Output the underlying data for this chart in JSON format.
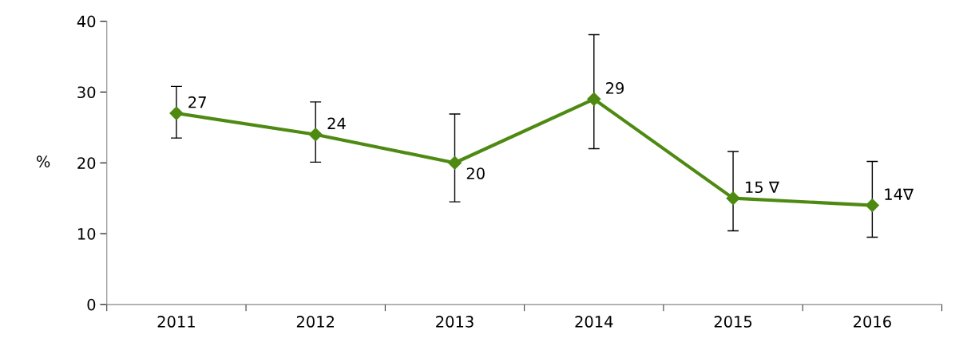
{
  "chart_data": {
    "type": "line",
    "ylabel": "%",
    "categories": [
      "2011",
      "2012",
      "2013",
      "2014",
      "2015",
      "2016"
    ],
    "series": [
      {
        "color": "#4e8a12",
        "values": [
          27,
          24,
          20,
          29,
          15,
          14
        ],
        "value_labels": [
          "27",
          "24",
          "20",
          "29",
          "15 ∇",
          "14∇"
        ],
        "errors": [
          [
            23.5,
            30.8
          ],
          [
            20.1,
            28.6
          ],
          [
            14.5,
            26.9
          ],
          [
            22.0,
            38.1
          ],
          [
            10.4,
            21.6
          ],
          [
            9.5,
            20.2
          ]
        ]
      }
    ],
    "ylim": [
      0,
      40
    ],
    "yticks": [
      0,
      10,
      20,
      30,
      40
    ],
    "grid": false,
    "legend": false,
    "marker": "diamond",
    "line_style": "solid"
  }
}
